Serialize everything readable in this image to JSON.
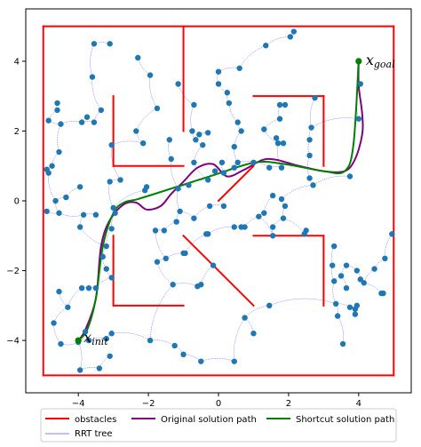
{
  "chart_data": {
    "type": "scatter",
    "title": "",
    "xlabel": "",
    "ylabel": "",
    "xlim": [
      -5.5,
      5.5
    ],
    "ylim": [
      -5.5,
      5.5
    ],
    "xticks": [
      -4,
      -2,
      0,
      2,
      4
    ],
    "yticks": [
      -4,
      -2,
      0,
      2,
      4
    ],
    "grid": false,
    "legend_position": "bottom-outside",
    "colors": {
      "obstacles": "#ff0000",
      "tree": "#0000ff",
      "nodes": "#1f77b4",
      "original": "#800080",
      "shortcut": "#008000"
    },
    "obstacles": [
      [
        [
          -5,
          -5
        ],
        [
          5,
          -5
        ]
      ],
      [
        [
          5,
          -5
        ],
        [
          5,
          5
        ]
      ],
      [
        [
          5,
          5
        ],
        [
          -5,
          5
        ]
      ],
      [
        [
          -5,
          5
        ],
        [
          -5,
          -5
        ]
      ],
      [
        [
          -1,
          5
        ],
        [
          -1,
          2
        ]
      ],
      [
        [
          -3,
          3
        ],
        [
          -3,
          1
        ]
      ],
      [
        [
          -3,
          1
        ],
        [
          -1,
          1
        ]
      ],
      [
        [
          1,
          3
        ],
        [
          3,
          3
        ]
      ],
      [
        [
          3,
          3
        ],
        [
          3,
          1
        ]
      ],
      [
        [
          -3,
          -1
        ],
        [
          -3,
          -3
        ]
      ],
      [
        [
          -3,
          -3
        ],
        [
          -1,
          -3
        ]
      ],
      [
        [
          1,
          -1
        ],
        [
          3,
          -1
        ]
      ],
      [
        [
          3,
          -1
        ],
        [
          3,
          -3
        ]
      ],
      [
        [
          -1,
          -1
        ],
        [
          1,
          -3
        ]
      ],
      [
        [
          0,
          0
        ],
        [
          1,
          1
        ]
      ]
    ],
    "nodes": [
      [
        -4.9,
        0.9
      ],
      [
        -4.85,
        0.8
      ],
      [
        -4.75,
        1.0
      ],
      [
        -4.55,
        1.4
      ],
      [
        -4.5,
        2.2
      ],
      [
        -4.6,
        2.6
      ],
      [
        -4.85,
        2.3
      ],
      [
        -4.6,
        2.8
      ],
      [
        -3.9,
        2.25
      ],
      [
        -3.75,
        2.4
      ],
      [
        -3.55,
        2.25
      ],
      [
        -3.35,
        2.6
      ],
      [
        -3.6,
        3.55
      ],
      [
        -3.55,
        4.5
      ],
      [
        -3.1,
        4.5
      ],
      [
        -3.05,
        1.6
      ],
      [
        -2.8,
        0.6
      ],
      [
        -3.1,
        0.55
      ],
      [
        -2.95,
        -0.35
      ],
      [
        -3.0,
        -0.2
      ],
      [
        -3.5,
        -0.4
      ],
      [
        -3.85,
        -0.4
      ],
      [
        -4.55,
        -0.35
      ],
      [
        -4.9,
        -0.3
      ],
      [
        -3.95,
        -0.75
      ],
      [
        -4.35,
        0.1
      ],
      [
        -3.95,
        0.4
      ],
      [
        -4.65,
        0.0
      ],
      [
        -3.05,
        -0.8
      ],
      [
        -3.2,
        -1.3
      ],
      [
        -3.3,
        -1.6
      ],
      [
        -3.2,
        -1.95
      ],
      [
        -3.05,
        -2.2
      ],
      [
        -3.7,
        -2.5
      ],
      [
        -3.5,
        -2.5
      ],
      [
        -3.9,
        -2.5
      ],
      [
        -4.55,
        -2.6
      ],
      [
        -4.3,
        -3.05
      ],
      [
        -4.7,
        -3.5
      ],
      [
        -4.5,
        -4.1
      ],
      [
        -4.0,
        -4.05
      ],
      [
        -3.7,
        -4.0
      ],
      [
        -3.8,
        -3.75
      ],
      [
        -3.05,
        -3.8
      ],
      [
        -3.2,
        -3.95
      ],
      [
        -3.1,
        -4.45
      ],
      [
        -3.4,
        -4.8
      ],
      [
        -3.95,
        -4.85
      ],
      [
        -1.95,
        -4.0
      ],
      [
        -1.25,
        -4.15
      ],
      [
        -1.0,
        -4.4
      ],
      [
        -0.5,
        -4.6
      ],
      [
        0.45,
        -4.6
      ],
      [
        0.75,
        -3.35
      ],
      [
        1.0,
        -3.8
      ],
      [
        1.45,
        -3.0
      ],
      [
        -1.3,
        -2.4
      ],
      [
        -0.5,
        -2.4
      ],
      [
        -0.6,
        -2.45
      ],
      [
        -0.15,
        -1.85
      ],
      [
        -0.95,
        -1.5
      ],
      [
        -1.0,
        -1.5
      ],
      [
        -1.5,
        -1.65
      ],
      [
        -1.75,
        -1.75
      ],
      [
        -1.8,
        -0.85
      ],
      [
        -1.55,
        -0.85
      ],
      [
        -1.2,
        -0.6
      ],
      [
        -1.1,
        -0.3
      ],
      [
        -0.7,
        -0.5
      ],
      [
        -0.3,
        -0.95
      ],
      [
        -0.3,
        0.6
      ],
      [
        -0.1,
        0.85
      ],
      [
        -0.85,
        0.45
      ],
      [
        -1.15,
        0.35
      ],
      [
        -2.1,
        0.3
      ],
      [
        -2.05,
        0.4
      ],
      [
        -1.35,
        1.2
      ],
      [
        -0.7,
        1.1
      ],
      [
        -0.65,
        1.75
      ],
      [
        -0.45,
        1.6
      ],
      [
        -0.3,
        1.95
      ],
      [
        -0.55,
        1.9
      ],
      [
        -0.75,
        2.0
      ],
      [
        -1.4,
        1.75
      ],
      [
        -1.75,
        2.65
      ],
      [
        -2.35,
        2.0
      ],
      [
        -2.15,
        1.65
      ],
      [
        -2.3,
        4.1
      ],
      [
        -1.95,
        3.6
      ],
      [
        -1.15,
        3.35
      ],
      [
        -0.7,
        2.75
      ],
      [
        0.0,
        3.7
      ],
      [
        0.0,
        3.35
      ],
      [
        0.25,
        3.1
      ],
      [
        0.3,
        2.8
      ],
      [
        0.6,
        3.8
      ],
      [
        0.55,
        2.25
      ],
      [
        0.65,
        2.0
      ],
      [
        0.45,
        1.55
      ],
      [
        0.55,
        1.1
      ],
      [
        0.1,
        1.1
      ],
      [
        0.15,
        0.8
      ],
      [
        0.45,
        0.95
      ],
      [
        1.0,
        1.1
      ],
      [
        1.3,
        2.05
      ],
      [
        1.75,
        2.75
      ],
      [
        1.9,
        2.75
      ],
      [
        1.75,
        2.35
      ],
      [
        1.65,
        1.8
      ],
      [
        1.7,
        1.65
      ],
      [
        1.85,
        1.65
      ],
      [
        2.65,
        2.1
      ],
      [
        2.75,
        2.95
      ],
      [
        2.6,
        1.75
      ],
      [
        2.6,
        1.3
      ],
      [
        2.6,
        0.65
      ],
      [
        2.7,
        0.45
      ],
      [
        1.8,
        0.95
      ],
      [
        1.45,
        0.95
      ],
      [
        1.55,
        0.15
      ],
      [
        1.8,
        0.05
      ],
      [
        1.9,
        -0.15
      ],
      [
        1.85,
        -0.5
      ],
      [
        1.55,
        -0.75
      ],
      [
        1.55,
        -1.0
      ],
      [
        1.3,
        -0.35
      ],
      [
        1.15,
        -0.45
      ],
      [
        0.75,
        -0.75
      ],
      [
        0.65,
        -0.75
      ],
      [
        -0.35,
        -0.95
      ],
      [
        -0.25,
        -0.15
      ],
      [
        0.15,
        -0.15
      ],
      [
        0.45,
        -0.75
      ],
      [
        2.05,
        4.7
      ],
      [
        2.15,
        4.85
      ],
      [
        1.35,
        4.45
      ],
      [
        2.5,
        -0.85
      ],
      [
        2.45,
        -0.95
      ],
      [
        3.3,
        -1.3
      ],
      [
        3.25,
        -1.85
      ],
      [
        3.5,
        -2.15
      ],
      [
        3.3,
        -2.3
      ],
      [
        3.65,
        -1.85
      ],
      [
        3.65,
        -2.5
      ],
      [
        3.35,
        -2.95
      ],
      [
        3.4,
        -3.3
      ],
      [
        3.75,
        -3.05
      ],
      [
        3.9,
        -3.1
      ],
      [
        3.95,
        -2.0
      ],
      [
        4.05,
        -2.25
      ],
      [
        4.15,
        -2.35
      ],
      [
        4.45,
        -1.95
      ],
      [
        4.75,
        -1.65
      ],
      [
        4.95,
        -0.95
      ],
      [
        4.65,
        -2.65
      ],
      [
        4.7,
        -2.65
      ],
      [
        3.95,
        -3.0
      ],
      [
        3.9,
        -3.25
      ],
      [
        3.55,
        -4.1
      ],
      [
        3.75,
        0.7
      ],
      [
        4.0,
        2.35
      ],
      [
        4.05,
        3.35
      ],
      [
        4.0,
        4.0
      ]
    ],
    "tree_edges_random_seed": 7,
    "original_path": [
      [
        -4,
        -4
      ],
      [
        -3.8,
        -3.7
      ],
      [
        -3.5,
        -2.8
      ],
      [
        -3.35,
        -1.3
      ],
      [
        -3.1,
        -0.55
      ],
      [
        -2.7,
        -0.1
      ],
      [
        -2.35,
        -0.05
      ],
      [
        -2.05,
        -0.25
      ],
      [
        -1.65,
        -0.15
      ],
      [
        -1.35,
        0.2
      ],
      [
        -1.0,
        0.55
      ],
      [
        -0.6,
        0.95
      ],
      [
        -0.15,
        1.05
      ],
      [
        0.25,
        0.7
      ],
      [
        0.75,
        0.9
      ],
      [
        1.4,
        1.2
      ],
      [
        2.3,
        1.0
      ],
      [
        3.0,
        0.85
      ],
      [
        3.6,
        0.85
      ],
      [
        3.9,
        1.2
      ],
      [
        4.1,
        1.9
      ],
      [
        4.1,
        2.5
      ],
      [
        4.0,
        3.3
      ],
      [
        4.0,
        4.0
      ]
    ],
    "shortcut_path": [
      [
        -4,
        -4
      ],
      [
        -3.75,
        -3.7
      ],
      [
        -3.5,
        -2.8
      ],
      [
        -3.3,
        -1.3
      ],
      [
        -3.0,
        -0.35
      ],
      [
        -2.7,
        -0.05
      ],
      [
        -2.3,
        0.05
      ],
      [
        -1.35,
        0.35
      ],
      [
        -0.1,
        0.75
      ],
      [
        1.05,
        1.1
      ],
      [
        1.9,
        1.05
      ],
      [
        3.0,
        0.85
      ],
      [
        3.6,
        0.85
      ],
      [
        3.85,
        1.6
      ],
      [
        4.0,
        4.0
      ]
    ],
    "start_point": [
      -4,
      -4
    ],
    "goal_point": [
      4,
      4
    ],
    "annotations": {
      "goal_main": "x",
      "goal_sub": "goal",
      "start_main": "x",
      "start_sub": "init"
    },
    "legend": {
      "obstacles": "obstacles",
      "original": "Original solution path",
      "shortcut": "Shortcut solution path",
      "tree": "RRT tree"
    }
  }
}
